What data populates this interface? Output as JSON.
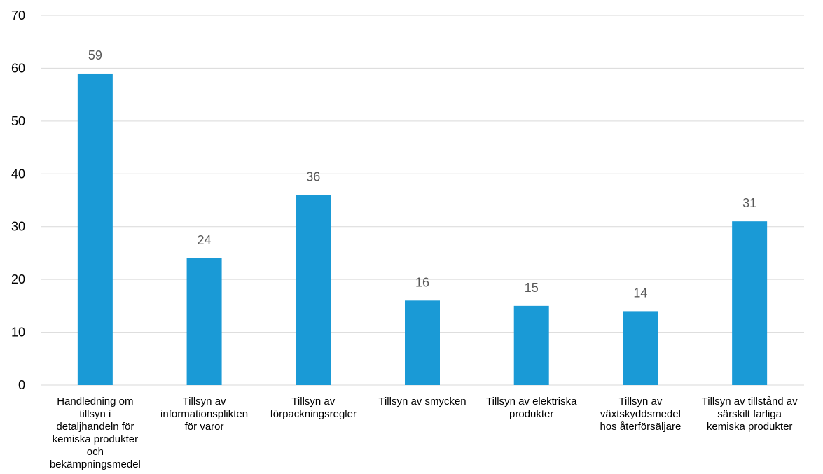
{
  "chart_data": {
    "type": "bar",
    "title": "",
    "xlabel": "",
    "ylabel": "",
    "ylim": [
      0,
      70
    ],
    "yticks": [
      0,
      10,
      20,
      30,
      40,
      50,
      60,
      70
    ],
    "grid": true,
    "legend": "none",
    "bar_color": "#1a9ad6",
    "categories": [
      [
        "Handledning om",
        "tillsyn i",
        "detaljhandeln för",
        "kemiska produkter",
        "och",
        "bekämpningsmedel"
      ],
      [
        "Tillsyn av",
        "informationsplikten",
        "för varor"
      ],
      [
        "Tillsyn av",
        "förpackningsregler"
      ],
      [
        "Tillsyn av smycken"
      ],
      [
        "Tillsyn av elektriska",
        "produkter"
      ],
      [
        "Tillsyn av",
        "växtskyddsmedel",
        "hos återförsäljare"
      ],
      [
        "Tillsyn av tillstånd av",
        "särskilt farliga",
        "kemiska produkter"
      ]
    ],
    "values": [
      59,
      24,
      36,
      16,
      15,
      14,
      31
    ]
  }
}
